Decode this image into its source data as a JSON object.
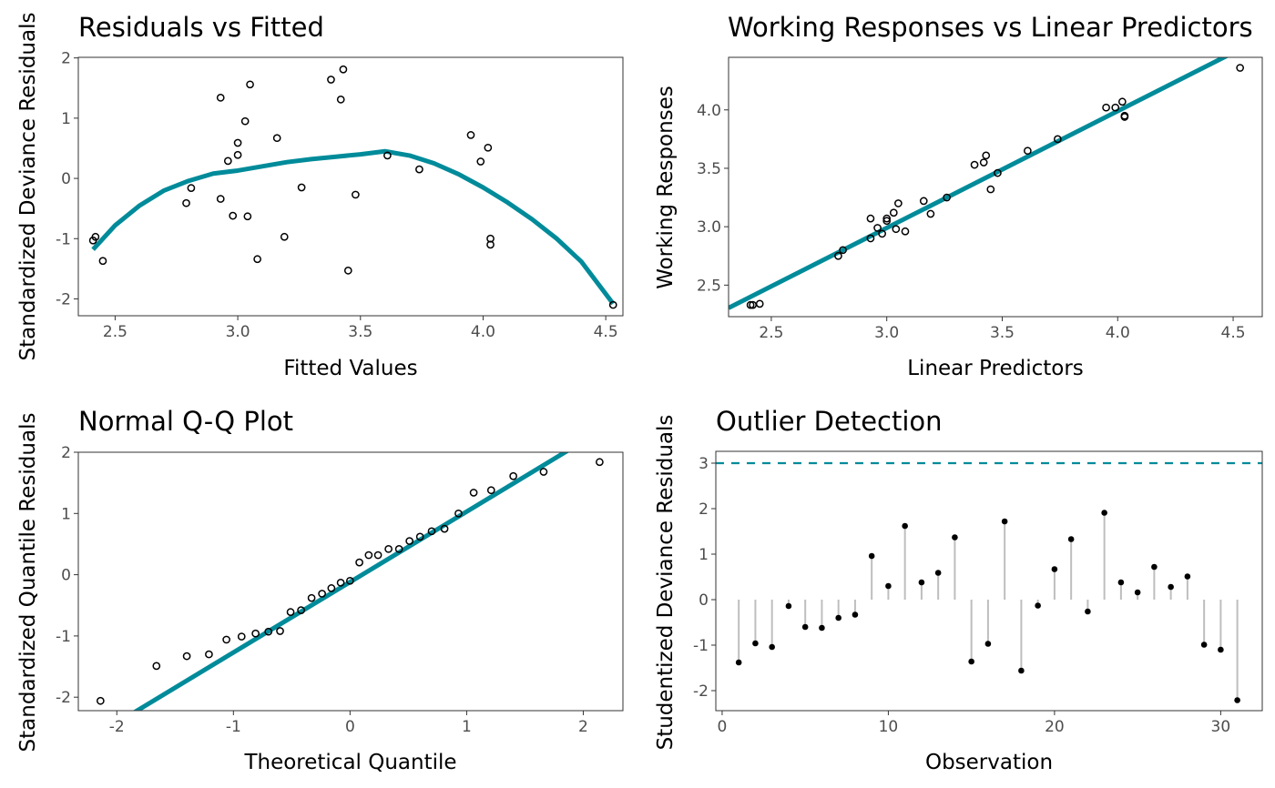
{
  "colors": {
    "accent": "#008b9a",
    "points": "#000000",
    "stems": "#bebebe",
    "frame": "#333333"
  },
  "chart_data": [
    {
      "type": "scatter",
      "title": "Residuals vs Fitted",
      "xlabel": "Fitted Values",
      "ylabel": "Standardized Deviance Residuals",
      "xlim": [
        2.35,
        4.57
      ],
      "ylim": [
        -2.28,
        2.01
      ],
      "xticks": [
        "2.5",
        "3.0",
        "3.5",
        "4.0",
        "4.5"
      ],
      "xtick_values": [
        2.5,
        3.0,
        3.5,
        4.0,
        4.5
      ],
      "yticks": [
        "-2",
        "-1",
        "0",
        "1",
        "2"
      ],
      "ytick_values": [
        -2,
        -1,
        0,
        1,
        2
      ],
      "grid": false,
      "x": [
        2.42,
        2.41,
        2.45,
        2.79,
        2.81,
        2.93,
        2.93,
        2.96,
        2.98,
        3.0,
        3.0,
        3.03,
        3.04,
        3.05,
        3.08,
        3.16,
        3.19,
        3.26,
        3.38,
        3.42,
        3.43,
        3.45,
        3.48,
        3.61,
        3.74,
        3.95,
        3.99,
        4.02,
        4.03,
        4.03,
        4.53
      ],
      "y": [
        -0.97,
        -1.03,
        -1.37,
        -0.41,
        -0.16,
        1.34,
        -0.34,
        0.29,
        -0.62,
        0.59,
        0.39,
        0.95,
        -0.63,
        1.56,
        -1.34,
        0.67,
        -0.97,
        -0.15,
        1.64,
        1.31,
        1.81,
        -1.53,
        -0.27,
        0.38,
        0.15,
        0.72,
        0.28,
        0.51,
        -1.0,
        -1.1,
        -2.1
      ],
      "smooth": {
        "x": [
          2.41,
          2.5,
          2.6,
          2.7,
          2.8,
          2.9,
          3.0,
          3.1,
          3.2,
          3.3,
          3.4,
          3.5,
          3.6,
          3.7,
          3.8,
          3.9,
          4.0,
          4.1,
          4.2,
          4.3,
          4.4,
          4.53
        ],
        "y": [
          -1.18,
          -0.78,
          -0.45,
          -0.2,
          -0.04,
          0.08,
          0.13,
          0.2,
          0.27,
          0.32,
          0.36,
          0.4,
          0.45,
          0.38,
          0.25,
          0.07,
          -0.15,
          -0.4,
          -0.68,
          -1.0,
          -1.38,
          -2.08
        ]
      }
    },
    {
      "type": "scatter",
      "title": "Working Responses vs Linear Predictors",
      "xlabel": "Linear Predictors",
      "ylabel": "Working Responses",
      "xlim": [
        2.315,
        4.626
      ],
      "ylim": [
        2.23,
        4.45
      ],
      "xticks": [
        "2.5",
        "3.0",
        "3.5",
        "4.0",
        "4.5"
      ],
      "xtick_values": [
        2.5,
        3.0,
        3.5,
        4.0,
        4.5
      ],
      "yticks": [
        "2.5",
        "3.0",
        "3.5",
        "4.0"
      ],
      "ytick_values": [
        2.5,
        3.0,
        3.5,
        4.0
      ],
      "grid": false,
      "x": [
        2.42,
        2.41,
        2.45,
        2.79,
        2.81,
        2.93,
        2.93,
        2.96,
        2.98,
        3.0,
        3.0,
        3.03,
        3.04,
        3.05,
        3.08,
        3.16,
        3.19,
        3.26,
        3.38,
        3.42,
        3.43,
        3.45,
        3.48,
        3.61,
        3.74,
        3.95,
        3.99,
        4.02,
        4.03,
        4.03,
        4.53
      ],
      "y": [
        2.33,
        2.33,
        2.34,
        2.75,
        2.8,
        3.07,
        2.9,
        2.99,
        2.94,
        3.07,
        3.05,
        3.12,
        2.98,
        3.2,
        2.96,
        3.22,
        3.11,
        3.25,
        3.53,
        3.55,
        3.61,
        3.32,
        3.46,
        3.65,
        3.75,
        4.02,
        4.02,
        4.07,
        3.95,
        3.94,
        4.36
      ],
      "line": {
        "intercept": -0.01,
        "slope": 1.0
      }
    },
    {
      "type": "scatter",
      "title": "Normal Q-Q Plot",
      "xlabel": "Theoretical Quantile",
      "ylabel": "Standardized Quantile Residuals",
      "xlim": [
        -2.33,
        2.34
      ],
      "ylim": [
        -2.22,
        2.0
      ],
      "xticks": [
        "-2",
        "-1",
        "0",
        "1",
        "2"
      ],
      "xtick_values": [
        -2,
        -1,
        0,
        1,
        2
      ],
      "yticks": [
        "-2",
        "-1",
        "0",
        "1",
        "2"
      ],
      "ytick_values": [
        -2,
        -1,
        0,
        1,
        2
      ],
      "grid": false,
      "x": [
        -2.14,
        -1.66,
        -1.4,
        -1.21,
        -1.06,
        -0.93,
        -0.81,
        -0.7,
        -0.6,
        -0.51,
        -0.42,
        -0.33,
        -0.24,
        -0.16,
        -0.08,
        0,
        0.08,
        0.16,
        0.24,
        0.33,
        0.42,
        0.51,
        0.6,
        0.7,
        0.81,
        0.93,
        1.06,
        1.21,
        1.4,
        1.66,
        2.14
      ],
      "y": [
        -2.06,
        -1.49,
        -1.33,
        -1.3,
        -1.06,
        -1.01,
        -0.96,
        -0.93,
        -0.92,
        -0.61,
        -0.58,
        -0.38,
        -0.31,
        -0.22,
        -0.13,
        -0.1,
        0.2,
        0.32,
        0.32,
        0.42,
        0.42,
        0.55,
        0.62,
        0.71,
        0.75,
        1.0,
        1.34,
        1.38,
        1.61,
        1.68,
        1.84
      ],
      "line": {
        "intercept": -0.12,
        "slope": 1.15
      }
    },
    {
      "type": "lollipop",
      "title": "Outlier Detection",
      "xlabel": "Observation",
      "ylabel": "Studentized Deviance Residuals",
      "xlim": [
        -0.38,
        32.5
      ],
      "ylim": [
        -2.44,
        3.26
      ],
      "xticks": [
        "0",
        "10",
        "20",
        "30"
      ],
      "xtick_values": [
        0,
        10,
        20,
        30
      ],
      "yticks": [
        "-2",
        "-1",
        "0",
        "1",
        "2",
        "3"
      ],
      "ytick_values": [
        -2,
        -1,
        0,
        1,
        2,
        3
      ],
      "grid": false,
      "threshold": 3,
      "x": [
        1,
        2,
        3,
        4,
        5,
        6,
        7,
        8,
        9,
        10,
        11,
        12,
        13,
        14,
        15,
        16,
        17,
        18,
        19,
        20,
        21,
        22,
        23,
        24,
        25,
        26,
        27,
        28,
        29,
        30,
        31
      ],
      "y": [
        -1.38,
        -0.96,
        -1.04,
        -0.14,
        -0.6,
        -0.62,
        -0.4,
        -0.33,
        0.96,
        0.3,
        1.62,
        0.38,
        0.59,
        1.37,
        -1.36,
        -0.97,
        1.72,
        -1.56,
        -0.13,
        0.67,
        1.33,
        -0.26,
        1.91,
        0.38,
        0.16,
        0.72,
        0.28,
        0.51,
        -0.99,
        -1.1,
        -2.21
      ]
    }
  ]
}
